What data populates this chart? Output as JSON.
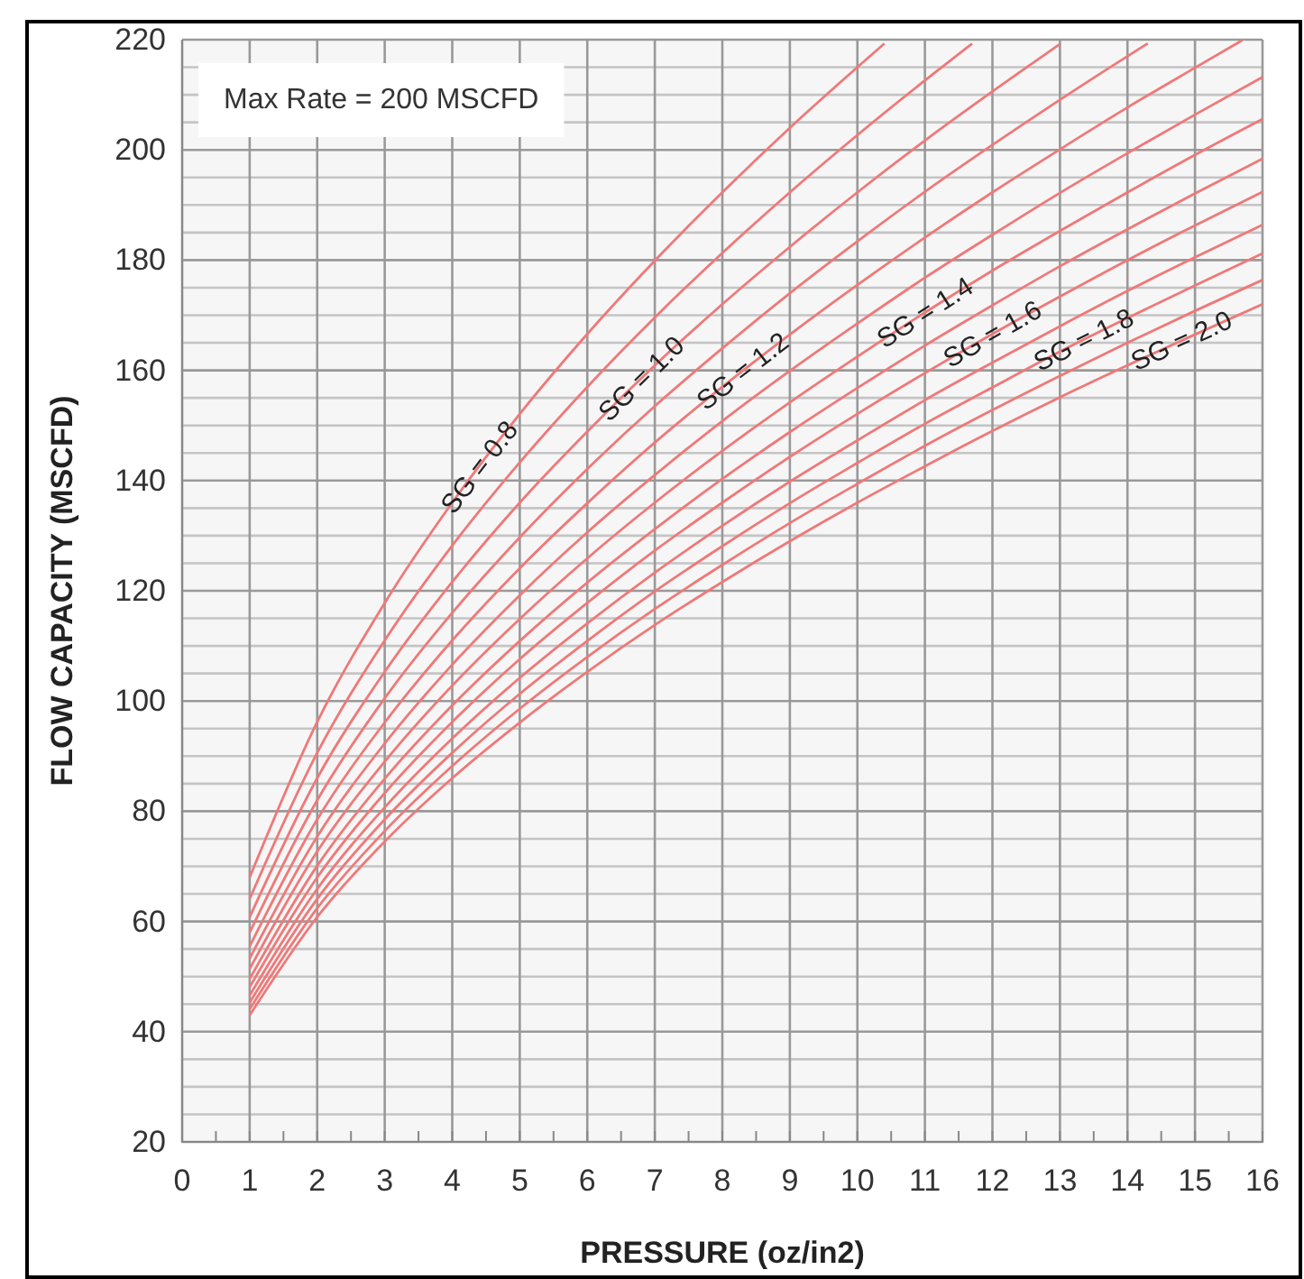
{
  "chart_data": {
    "type": "line",
    "xlabel": "PRESSURE (oz/in2)",
    "ylabel": "FLOW CAPACITY (MSCFD)",
    "annotations": [
      "Max Rate = 200 MSCFD"
    ],
    "xlim": [
      0,
      16
    ],
    "ylim": [
      20,
      220
    ],
    "xticks": [
      0,
      {
        "value": 0.5,
        "label": null
      },
      1,
      {
        "value": 1.5,
        "label": null
      },
      2,
      {
        "value": 2.5,
        "label": null
      },
      3,
      {
        "value": 3.5,
        "label": null
      },
      4,
      {
        "value": 4.5,
        "label": null
      },
      5,
      {
        "value": 5.5,
        "label": null
      },
      6,
      {
        "value": 6.5,
        "label": null
      },
      7,
      {
        "value": 7.5,
        "label": null
      },
      8,
      {
        "value": 8.5,
        "label": null
      },
      9,
      {
        "value": 9.5,
        "label": null
      },
      10,
      {
        "value": 10.5,
        "label": null
      },
      11,
      {
        "value": 11.5,
        "label": null
      },
      12,
      {
        "value": 12.5,
        "label": null
      },
      13,
      {
        "value": 13.5,
        "label": null
      },
      14,
      {
        "value": 14.5,
        "label": null
      },
      15,
      {
        "value": 15.5,
        "label": null
      },
      16
    ],
    "yticks": [
      20,
      {
        "value": 25,
        "label": null
      },
      {
        "value": 30,
        "label": null
      },
      {
        "value": 35,
        "label": null
      },
      40,
      {
        "value": 45,
        "label": null
      },
      {
        "value": 50,
        "label": null
      },
      {
        "value": 55,
        "label": null
      },
      60,
      {
        "value": 65,
        "label": null
      },
      {
        "value": 70,
        "label": null
      },
      {
        "value": 75,
        "label": null
      },
      80,
      {
        "value": 85,
        "label": null
      },
      {
        "value": 90,
        "label": null
      },
      {
        "value": 95,
        "label": null
      },
      100,
      {
        "value": 105,
        "label": null
      },
      {
        "value": 110,
        "label": null
      },
      {
        "value": 115,
        "label": null
      },
      120,
      {
        "value": 125,
        "label": null
      },
      {
        "value": 130,
        "label": null
      },
      {
        "value": 135,
        "label": null
      },
      140,
      {
        "value": 145,
        "label": null
      },
      {
        "value": 150,
        "label": null
      },
      {
        "value": 155,
        "label": null
      },
      160,
      {
        "value": 165,
        "label": null
      },
      {
        "value": 170,
        "label": null
      },
      {
        "value": 175,
        "label": null
      },
      180,
      {
        "value": 185,
        "label": null
      },
      {
        "value": 190,
        "label": null
      },
      {
        "value": 195,
        "label": null
      },
      200,
      {
        "value": 205,
        "label": null
      },
      {
        "value": 210,
        "label": null
      },
      {
        "value": 215,
        "label": null
      },
      220
    ],
    "grid": true,
    "marker": "none",
    "line_style": "solid",
    "series": [
      {
        "name": "SG = 0.8",
        "color": "#f07878",
        "x": [
          1,
          2,
          3,
          4,
          5,
          6,
          7,
          8,
          9,
          10,
          10.4
        ],
        "values": [
          68,
          96.2,
          117.8,
          136,
          152.1,
          166.6,
          179.9,
          192.3,
          204,
          215,
          219.3
        ]
      },
      {
        "color": "#f07878",
        "x": [
          1,
          2,
          3,
          4,
          5,
          6,
          7,
          8,
          9,
          10,
          11,
          11.7
        ],
        "values": [
          64.1,
          90.6,
          111,
          128.2,
          143.3,
          157,
          169.6,
          181.3,
          192.3,
          202.7,
          212.6,
          219.3
        ]
      },
      {
        "name": "SG = 1.0",
        "color": "#f07878",
        "x": [
          1,
          2,
          3,
          4,
          5,
          6,
          7,
          8,
          9,
          10,
          11,
          12,
          13
        ],
        "values": [
          60.8,
          86,
          105.3,
          121.6,
          136,
          148.9,
          160.9,
          172,
          182.4,
          192.3,
          201.7,
          210.6,
          219.2
        ]
      },
      {
        "color": "#f07878",
        "x": [
          1,
          2,
          3,
          4,
          5,
          6,
          7,
          8,
          9,
          10,
          11,
          12,
          13,
          14,
          14.3
        ],
        "values": [
          58,
          82,
          100.5,
          116,
          129.7,
          142.1,
          153.5,
          164,
          174,
          183.4,
          192.4,
          200.9,
          209.1,
          217,
          219.3
        ]
      },
      {
        "name": "SG = 1.2",
        "color": "#f07878",
        "x": [
          1,
          2,
          3,
          4,
          5,
          6,
          7,
          8,
          9,
          10,
          11,
          12,
          13,
          14,
          15,
          15.7
        ],
        "values": [
          55.5,
          78.5,
          96.1,
          111,
          124.1,
          135.9,
          146.9,
          157,
          166.5,
          175.5,
          184.1,
          192.3,
          200.1,
          207.7,
          214.9,
          219.9
        ]
      },
      {
        "color": "#f07878",
        "x": [
          1,
          2,
          3,
          4,
          5,
          6,
          7,
          8,
          9,
          10,
          11,
          12,
          13,
          14,
          15,
          16
        ],
        "values": [
          53.3,
          75.4,
          92.3,
          106.6,
          119.2,
          130.6,
          141,
          150.8,
          159.9,
          168.5,
          176.8,
          184.6,
          192.2,
          199.4,
          206.4,
          213.2
        ]
      },
      {
        "name": "SG = 1.4",
        "color": "#f07878",
        "x": [
          1,
          2,
          3,
          4,
          5,
          6,
          7,
          8,
          9,
          10,
          11,
          12,
          13,
          14,
          15,
          16
        ],
        "values": [
          51.4,
          72.7,
          89,
          102.8,
          114.9,
          125.9,
          136,
          145.4,
          154.2,
          162.5,
          170.5,
          178.1,
          185.3,
          192.3,
          199.1,
          205.6
        ]
      },
      {
        "color": "#f07878",
        "x": [
          1,
          2,
          3,
          4,
          5,
          6,
          7,
          8,
          9,
          10,
          11,
          12,
          13,
          14,
          15,
          16
        ],
        "values": [
          49.6,
          70.1,
          85.9,
          99.2,
          110.9,
          121.5,
          131.2,
          140.3,
          148.8,
          156.8,
          164.5,
          171.8,
          178.9,
          185.6,
          192.1,
          198.4
        ]
      },
      {
        "name": "SG = 1.6",
        "color": "#f07878",
        "x": [
          1,
          2,
          3,
          4,
          5,
          6,
          7,
          8,
          9,
          10,
          11,
          12,
          13,
          14,
          15,
          16
        ],
        "values": [
          48.1,
          68,
          83.3,
          96.2,
          107.6,
          117.8,
          127.3,
          136,
          144.3,
          152.1,
          159.5,
          166.6,
          173.4,
          180,
          186.3,
          192.4
        ]
      },
      {
        "color": "#f07878",
        "x": [
          1,
          2,
          3,
          4,
          5,
          6,
          7,
          8,
          9,
          10,
          11,
          12,
          13,
          14,
          15,
          16
        ],
        "values": [
          46.6,
          65.9,
          80.7,
          93.2,
          104.2,
          114.1,
          123.3,
          131.8,
          139.8,
          147.3,
          154.6,
          161.4,
          168,
          174.4,
          180.5,
          186.4
        ]
      },
      {
        "name": "SG = 1.8",
        "color": "#f07878",
        "x": [
          1,
          2,
          3,
          4,
          5,
          6,
          7,
          8,
          9,
          10,
          11,
          12,
          13,
          14,
          15,
          16
        ],
        "values": [
          45.3,
          64.1,
          78.5,
          90.6,
          101.3,
          110.9,
          119.9,
          128.1,
          135.9,
          143.2,
          150.3,
          156.9,
          163.4,
          169.5,
          175.4,
          181.2
        ]
      },
      {
        "color": "#f07878",
        "x": [
          1,
          2,
          3,
          4,
          5,
          6,
          7,
          8,
          9,
          10,
          11,
          12,
          13,
          14,
          15,
          16
        ],
        "values": [
          44.1,
          62.4,
          76.4,
          88.2,
          98.6,
          108,
          116.7,
          124.7,
          132.3,
          139.4,
          146.3,
          152.8,
          159,
          165,
          170.8,
          176.4
        ]
      },
      {
        "name": "SG = 2.0",
        "color": "#f07878",
        "x": [
          1,
          2,
          3,
          4,
          5,
          6,
          7,
          8,
          9,
          10,
          11,
          12,
          13,
          14,
          15,
          16
        ],
        "values": [
          43,
          60.8,
          74.5,
          86,
          96.1,
          105.3,
          113.8,
          121.6,
          129,
          136,
          142.6,
          149,
          155.1,
          160.9,
          166.5,
          172
        ]
      }
    ]
  }
}
